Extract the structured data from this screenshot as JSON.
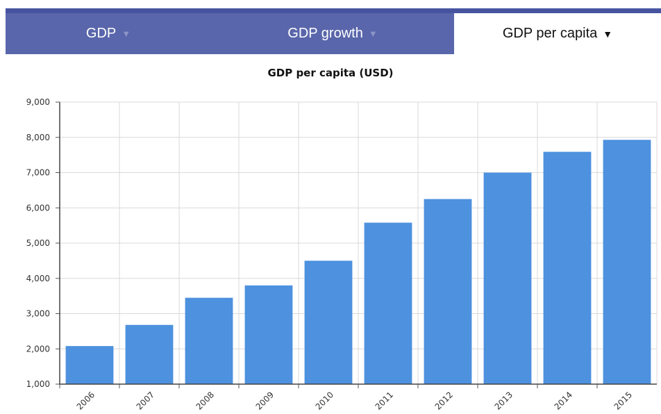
{
  "tabs": [
    {
      "label": "GDP",
      "arrow": "▼",
      "active": false
    },
    {
      "label": "GDP growth",
      "arrow": "▼",
      "active": false
    },
    {
      "label": "GDP per capita",
      "arrow": "▼",
      "active": true
    }
  ],
  "colors": {
    "bar": "#4d91df",
    "tab_bar": "#5966ab",
    "grid": "#d9d9d9"
  },
  "chart_data": {
    "type": "bar",
    "title": "GDP per capita (USD)",
    "xlabel": "",
    "ylabel": "",
    "categories": [
      "2006",
      "2007",
      "2008",
      "2009",
      "2010",
      "2011",
      "2012",
      "2013",
      "2014",
      "2015"
    ],
    "values": [
      2080,
      2680,
      3450,
      3800,
      4500,
      5580,
      6250,
      7000,
      7590,
      7930
    ],
    "ylim": [
      1000,
      9000
    ],
    "yticks": [
      "1,000",
      "2,000",
      "3,000",
      "4,000",
      "5,000",
      "6,000",
      "7,000",
      "8,000",
      "9,000"
    ],
    "grid": true,
    "legend": "none"
  }
}
